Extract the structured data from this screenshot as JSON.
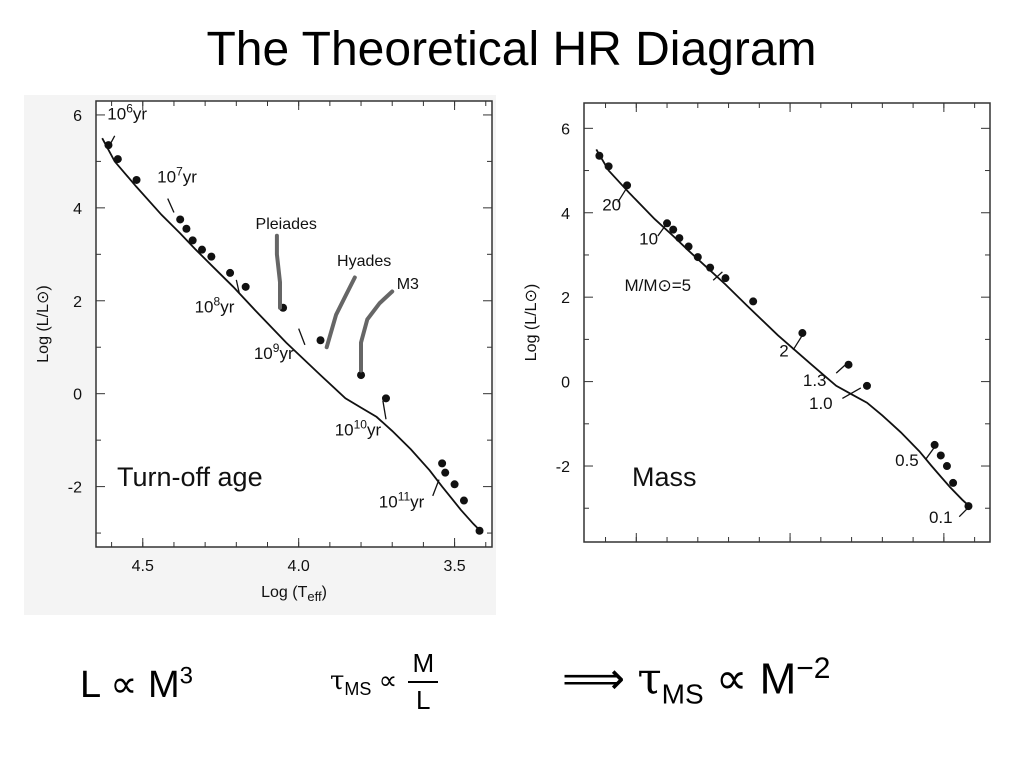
{
  "title": "The Theoretical HR Diagram",
  "equations": {
    "eq1": {
      "lhs": "L",
      "op": "∝",
      "base": "M",
      "exp": "3"
    },
    "eq2": {
      "tau": "τ",
      "sub": "MS",
      "op": "∝",
      "num": "M",
      "den": "L"
    },
    "eq3": {
      "arrow": "⟹",
      "tau": "τ",
      "sub": "MS",
      "op": "∝",
      "base": "M",
      "exp": "−2"
    }
  },
  "colors": {
    "ink": "#111111",
    "frame": "#333333",
    "shade": "#f4f4f4",
    "isochrone": "#666666"
  },
  "chart_data": [
    {
      "type": "line",
      "panel_label": "Turn-off age",
      "xlabel": "Log (Teff)",
      "ylabel": "Log (L/L⊙)",
      "xlim": [
        4.65,
        3.38
      ],
      "ylim": [
        -3.3,
        6.3
      ],
      "x_ticks": [
        4.5,
        4.0,
        3.5
      ],
      "y_ticks": [
        6,
        4,
        2,
        0,
        -2
      ],
      "x_tick_labels": [
        "4.5",
        "4.0",
        "3.5"
      ],
      "y_tick_labels": [
        "6",
        "4",
        "2",
        "0",
        "-2"
      ],
      "main_sequence": {
        "x": [
          4.63,
          4.59,
          4.52,
          4.44,
          4.38,
          4.33,
          4.27,
          4.21,
          4.14,
          4.04,
          3.93,
          3.85,
          3.8,
          3.75,
          3.7,
          3.64,
          3.58,
          3.54,
          3.51,
          3.48,
          3.44,
          3.41
        ],
        "y": [
          5.5,
          5.0,
          4.45,
          3.85,
          3.45,
          3.1,
          2.7,
          2.3,
          1.8,
          1.1,
          0.4,
          -0.1,
          -0.3,
          -0.5,
          -0.8,
          -1.2,
          -1.65,
          -2.0,
          -2.25,
          -2.5,
          -2.8,
          -3.0
        ]
      },
      "points": {
        "x": [
          4.61,
          4.58,
          4.52,
          4.38,
          4.36,
          4.34,
          4.31,
          4.28,
          4.22,
          4.17,
          4.05,
          3.93,
          3.8,
          3.72,
          3.54,
          3.53,
          3.5,
          3.47,
          3.42
        ],
        "y": [
          5.35,
          5.05,
          4.6,
          3.75,
          3.55,
          3.3,
          3.1,
          2.95,
          2.6,
          2.3,
          1.85,
          1.15,
          0.4,
          -0.1,
          -1.5,
          -1.7,
          -1.95,
          -2.3,
          -2.95
        ]
      },
      "age_labels": [
        {
          "base": "10",
          "exp": "6",
          "unit": "yr",
          "x": 4.55,
          "y": 5.9
        },
        {
          "base": "10",
          "exp": "7",
          "unit": "yr",
          "x": 4.39,
          "y": 4.55
        },
        {
          "base": "10",
          "exp": "8",
          "unit": "yr",
          "x": 4.27,
          "y": 1.75
        },
        {
          "base": "10",
          "exp": "9",
          "unit": "yr",
          "x": 4.08,
          "y": 0.75
        },
        {
          "base": "10",
          "exp": "10",
          "unit": "yr",
          "x": 3.81,
          "y": -0.9
        },
        {
          "base": "10",
          "exp": "11",
          "unit": "yr",
          "x": 3.67,
          "y": -2.45
        }
      ],
      "age_ticks": [
        [
          4.59,
          5.55,
          4.61,
          5.3
        ],
        [
          4.42,
          4.2,
          4.4,
          3.9
        ],
        [
          4.19,
          2.15,
          4.2,
          2.45
        ],
        [
          4.0,
          1.4,
          3.98,
          1.05
        ],
        [
          3.72,
          -0.55,
          3.73,
          -0.15
        ],
        [
          3.57,
          -2.2,
          3.55,
          -1.85
        ]
      ],
      "isochrones": [
        {
          "name": "Pleiades",
          "x": [
            4.06,
            4.06,
            4.07,
            4.07
          ],
          "y": [
            1.85,
            2.4,
            3.0,
            3.4
          ],
          "label_x": 4.04,
          "label_y": 3.55
        },
        {
          "name": "Hyades",
          "x": [
            3.91,
            3.88,
            3.85,
            3.82
          ],
          "y": [
            1.0,
            1.7,
            2.1,
            2.5
          ],
          "label_x": 3.79,
          "label_y": 2.75
        },
        {
          "name": "M3",
          "x": [
            3.8,
            3.8,
            3.78,
            3.74,
            3.7
          ],
          "y": [
            0.5,
            1.1,
            1.6,
            1.95,
            2.2
          ],
          "label_x": 3.65,
          "label_y": 2.25
        }
      ]
    },
    {
      "type": "line",
      "panel_label": "Mass",
      "xlabel": "Log (Teff)",
      "ylabel": "Log (L/L⊙)",
      "xlim": [
        4.67,
        3.35
      ],
      "ylim": [
        -3.8,
        6.6
      ],
      "x_ticks": [
        4.5,
        4.0,
        3.5
      ],
      "y_ticks": [
        6,
        4,
        2,
        0,
        -2
      ],
      "x_tick_labels": [
        "4.5",
        "4.0",
        "3.5"
      ],
      "y_tick_labels": [
        "6",
        "4",
        "2",
        "0",
        "-2"
      ],
      "main_sequence": {
        "x": [
          4.63,
          4.59,
          4.52,
          4.44,
          4.38,
          4.33,
          4.27,
          4.21,
          4.14,
          4.04,
          3.93,
          3.85,
          3.8,
          3.75,
          3.7,
          3.64,
          3.58,
          3.54,
          3.51,
          3.48,
          3.44,
          3.41
        ],
        "y": [
          5.5,
          5.0,
          4.45,
          3.85,
          3.45,
          3.1,
          2.7,
          2.3,
          1.8,
          1.1,
          0.4,
          -0.1,
          -0.3,
          -0.5,
          -0.8,
          -1.2,
          -1.65,
          -2.0,
          -2.25,
          -2.5,
          -2.8,
          -3.0
        ]
      },
      "points": {
        "x": [
          4.62,
          4.59,
          4.53,
          4.4,
          4.38,
          4.36,
          4.33,
          4.3,
          4.26,
          4.21,
          4.12,
          3.96,
          3.81,
          3.75,
          3.53,
          3.51,
          3.49,
          3.47,
          3.42
        ],
        "y": [
          5.35,
          5.1,
          4.65,
          3.75,
          3.6,
          3.4,
          3.2,
          2.95,
          2.7,
          2.45,
          1.9,
          1.15,
          0.4,
          -0.1,
          -1.5,
          -1.75,
          -2.0,
          -2.4,
          -2.95
        ]
      },
      "mass_labels": [
        {
          "text": "20",
          "x": 4.58,
          "y": 4.05
        },
        {
          "text": "10",
          "x": 4.46,
          "y": 3.25
        },
        {
          "text": "M/M⊙=5",
          "x": 4.43,
          "y": 2.15
        },
        {
          "text": "2",
          "x": 4.02,
          "y": 0.6
        },
        {
          "text": "1.3",
          "x": 3.92,
          "y": -0.1
        },
        {
          "text": "1.0",
          "x": 3.9,
          "y": -0.65
        },
        {
          "text": "0.5",
          "x": 3.62,
          "y": -2.0
        },
        {
          "text": "0.1",
          "x": 3.51,
          "y": -3.35
        }
      ],
      "mass_ticks": [
        [
          4.56,
          4.25,
          4.53,
          4.6
        ],
        [
          4.43,
          3.45,
          4.4,
          3.75
        ],
        [
          4.25,
          2.4,
          4.22,
          2.6
        ],
        [
          3.99,
          0.75,
          3.96,
          1.1
        ],
        [
          3.85,
          0.2,
          3.82,
          0.4
        ],
        [
          3.83,
          -0.4,
          3.77,
          -0.15
        ],
        [
          3.56,
          -1.85,
          3.53,
          -1.55
        ],
        [
          3.45,
          -3.2,
          3.42,
          -2.98
        ]
      ]
    }
  ]
}
